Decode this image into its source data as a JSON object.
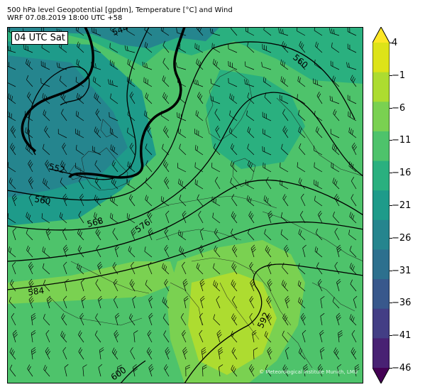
{
  "header": {
    "line1": "500 hPa level Geopotential [gpdm], Temperature [°C] and Wind",
    "line2": "WRF 07.08.2019 18:00 UTC +58"
  },
  "map": {
    "time_label": "04 UTC Sat",
    "copyright": "© Meteorological Institute Munich, LMU",
    "contour_labels": [
      "544",
      "552",
      "560",
      "560",
      "568",
      "576",
      "584",
      "592",
      "600"
    ]
  },
  "colorbar": {
    "ticks": [
      "4",
      "−1",
      "−6",
      "−11",
      "−16",
      "−21",
      "−26",
      "−31",
      "−36",
      "−41",
      "−46"
    ],
    "colors_top_to_bottom": [
      "#fde725",
      "#dde318",
      "#addc30",
      "#7ad151",
      "#4ec36b",
      "#2ab07f",
      "#1e9b8a",
      "#25858e",
      "#2d708e",
      "#38588c",
      "#433e85",
      "#482173",
      "#440154"
    ]
  }
}
